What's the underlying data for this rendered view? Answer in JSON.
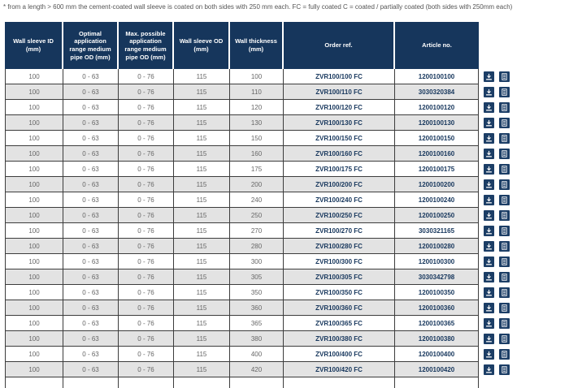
{
  "note": "* from a length > 600 mm the cement-coated wall sleeve is coated on both sides with 250 mm each. FC = fully coated C = coated / partially coated (both sides with 250mm each)",
  "table": {
    "columns": [
      "Wall sleeve ID (mm)",
      "Optimal application range medium pipe OD (mm)",
      "Max. possible application range medium pipe OD (mm)",
      "Wall sleeve OD (mm)",
      "Wall thickness (mm)",
      "Order ref.",
      "Article no."
    ],
    "rows": [
      [
        "100",
        "0 - 63",
        "0 - 76",
        "115",
        "100",
        "ZVR100/100 FC",
        "1200100100"
      ],
      [
        "100",
        "0 - 63",
        "0 - 76",
        "115",
        "110",
        "ZVR100/110 FC",
        "3030320384"
      ],
      [
        "100",
        "0 - 63",
        "0 - 76",
        "115",
        "120",
        "ZVR100/120 FC",
        "1200100120"
      ],
      [
        "100",
        "0 - 63",
        "0 - 76",
        "115",
        "130",
        "ZVR100/130 FC",
        "1200100130"
      ],
      [
        "100",
        "0 - 63",
        "0 - 76",
        "115",
        "150",
        "ZVR100/150 FC",
        "1200100150"
      ],
      [
        "100",
        "0 - 63",
        "0 - 76",
        "115",
        "160",
        "ZVR100/160 FC",
        "1200100160"
      ],
      [
        "100",
        "0 - 63",
        "0 - 76",
        "115",
        "175",
        "ZVR100/175 FC",
        "1200100175"
      ],
      [
        "100",
        "0 - 63",
        "0 - 76",
        "115",
        "200",
        "ZVR100/200 FC",
        "1200100200"
      ],
      [
        "100",
        "0 - 63",
        "0 - 76",
        "115",
        "240",
        "ZVR100/240 FC",
        "1200100240"
      ],
      [
        "100",
        "0 - 63",
        "0 - 76",
        "115",
        "250",
        "ZVR100/250 FC",
        "1200100250"
      ],
      [
        "100",
        "0 - 63",
        "0 - 76",
        "115",
        "270",
        "ZVR100/270 FC",
        "3030321165"
      ],
      [
        "100",
        "0 - 63",
        "0 - 76",
        "115",
        "280",
        "ZVR100/280 FC",
        "1200100280"
      ],
      [
        "100",
        "0 - 63",
        "0 - 76",
        "115",
        "300",
        "ZVR100/300 FC",
        "1200100300"
      ],
      [
        "100",
        "0 - 63",
        "0 - 76",
        "115",
        "305",
        "ZVR100/305 FC",
        "3030342798"
      ],
      [
        "100",
        "0 - 63",
        "0 - 76",
        "115",
        "350",
        "ZVR100/350 FC",
        "1200100350"
      ],
      [
        "100",
        "0 - 63",
        "0 - 76",
        "115",
        "360",
        "ZVR100/360 FC",
        "1200100360"
      ],
      [
        "100",
        "0 - 63",
        "0 - 76",
        "115",
        "365",
        "ZVR100/365 FC",
        "1200100365"
      ],
      [
        "100",
        "0 - 63",
        "0 - 76",
        "115",
        "380",
        "ZVR100/380 FC",
        "1200100380"
      ],
      [
        "100",
        "0 - 63",
        "0 - 76",
        "115",
        "400",
        "ZVR100/400 FC",
        "1200100400"
      ],
      [
        "100",
        "0 - 63",
        "0 - 76",
        "115",
        "420",
        "ZVR100/420 FC",
        "1200100420"
      ]
    ]
  },
  "row_actions": {
    "download_icon": "download-icon",
    "document_icon": "document-icon"
  },
  "colors": {
    "header_bg": "#16365C",
    "header_text": "#FFFFFF",
    "row_alt_bg": "#E3E3E3",
    "cell_border": "#3C3C3C",
    "numeric_text": "#666666",
    "ref_text": "#16365C",
    "icon_bg": "#1C3E66",
    "note_text": "#555555"
  }
}
